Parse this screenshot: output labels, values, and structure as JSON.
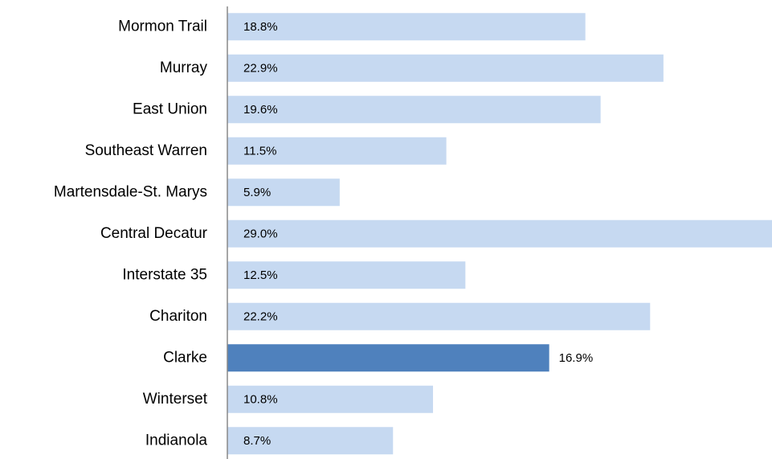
{
  "chart_data": {
    "type": "barh",
    "categories": [
      "Mormon Trail",
      "Murray",
      "East Union",
      "Southeast Warren",
      "Martensdale-St. Marys",
      "Central Decatur",
      "Interstate 35",
      "Chariton",
      "Clarke",
      "Winterset",
      "Indianola"
    ],
    "values": [
      18.8,
      22.9,
      19.6,
      11.5,
      5.9,
      29.0,
      12.5,
      22.2,
      16.9,
      10.8,
      8.7
    ],
    "value_labels": [
      "18.8%",
      "22.9%",
      "19.6%",
      "11.5%",
      "5.9%",
      "29.0%",
      "12.5%",
      "22.2%",
      "16.9%",
      "10.8%",
      "8.7%"
    ],
    "color": "#c6d9f1",
    "colors": [
      "#c6d9f1",
      "#c6d9f1",
      "#c6d9f1",
      "#c6d9f1",
      "#c6d9f1",
      "#c6d9f1",
      "#c6d9f1",
      "#c6d9f1",
      "#4f81bd",
      "#c6d9f1",
      "#c6d9f1"
    ],
    "xlim": [
      0,
      28.6
    ]
  }
}
